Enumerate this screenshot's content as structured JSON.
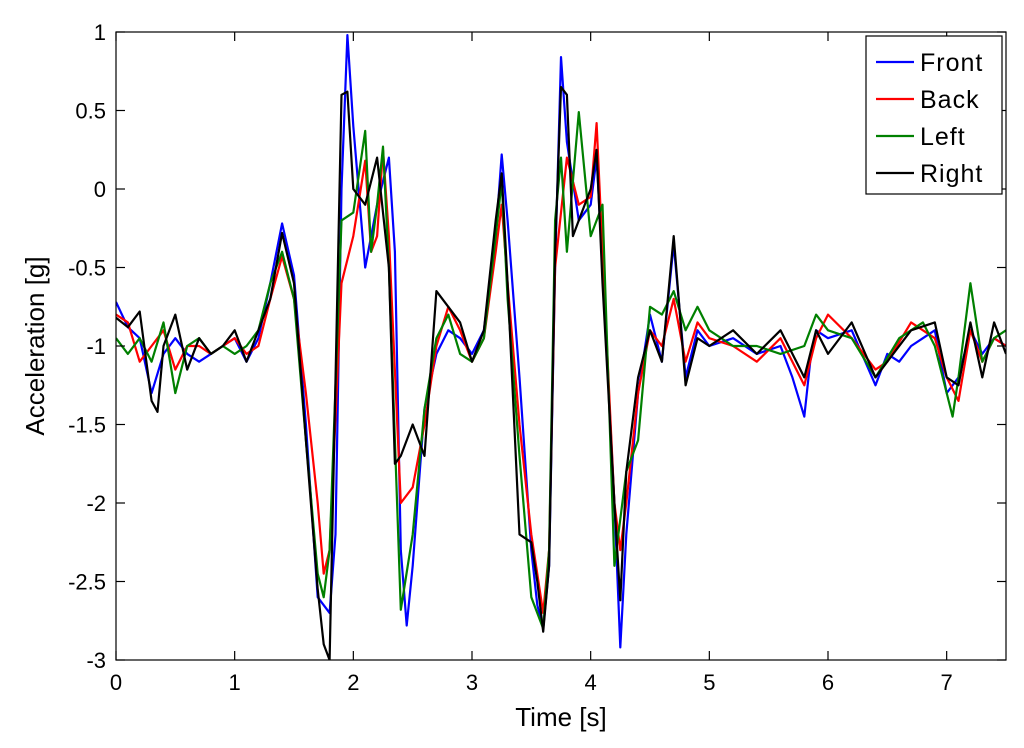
{
  "chart_data": {
    "type": "line",
    "title": "",
    "xlabel": "Time [s]",
    "ylabel": "Acceleration [g]",
    "xlim": [
      0,
      7.5
    ],
    "ylim": [
      -3,
      1
    ],
    "x_ticks": [
      0,
      1,
      2,
      3,
      4,
      5,
      6,
      7
    ],
    "y_ticks": [
      1,
      0.5,
      0,
      -0.5,
      -1,
      -1.5,
      -2,
      -2.5,
      -3
    ],
    "grid": false,
    "legend": "top-right",
    "series": [
      {
        "name": "Front",
        "color": "#0000ff",
        "points": [
          [
            0,
            -0.72
          ],
          [
            0.1,
            -0.88
          ],
          [
            0.2,
            -0.95
          ],
          [
            0.3,
            -1.3
          ],
          [
            0.4,
            -1.05
          ],
          [
            0.5,
            -0.95
          ],
          [
            0.6,
            -1.05
          ],
          [
            0.7,
            -1.1
          ],
          [
            0.8,
            -1.05
          ],
          [
            0.9,
            -1.0
          ],
          [
            1.0,
            -0.95
          ],
          [
            1.1,
            -1.1
          ],
          [
            1.2,
            -0.95
          ],
          [
            1.3,
            -0.6
          ],
          [
            1.4,
            -0.22
          ],
          [
            1.5,
            -0.55
          ],
          [
            1.6,
            -1.5
          ],
          [
            1.7,
            -2.6
          ],
          [
            1.8,
            -2.7
          ],
          [
            1.85,
            -2.2
          ],
          [
            1.9,
            0.0
          ],
          [
            1.95,
            0.98
          ],
          [
            2.0,
            0.4
          ],
          [
            2.1,
            -0.5
          ],
          [
            2.2,
            -0.1
          ],
          [
            2.3,
            0.2
          ],
          [
            2.35,
            -0.4
          ],
          [
            2.4,
            -2.3
          ],
          [
            2.45,
            -2.78
          ],
          [
            2.5,
            -2.4
          ],
          [
            2.6,
            -1.4
          ],
          [
            2.7,
            -1.05
          ],
          [
            2.8,
            -0.9
          ],
          [
            2.9,
            -0.95
          ],
          [
            3.0,
            -1.05
          ],
          [
            3.1,
            -0.9
          ],
          [
            3.2,
            -0.3
          ],
          [
            3.25,
            0.22
          ],
          [
            3.3,
            -0.2
          ],
          [
            3.4,
            -1.2
          ],
          [
            3.5,
            -2.3
          ],
          [
            3.55,
            -2.65
          ],
          [
            3.6,
            -2.8
          ],
          [
            3.65,
            -2.4
          ],
          [
            3.7,
            -0.5
          ],
          [
            3.75,
            0.84
          ],
          [
            3.8,
            0.3
          ],
          [
            3.9,
            -0.2
          ],
          [
            4.0,
            -0.1
          ],
          [
            4.05,
            0.2
          ],
          [
            4.1,
            -0.5
          ],
          [
            4.2,
            -2.0
          ],
          [
            4.25,
            -2.92
          ],
          [
            4.3,
            -2.2
          ],
          [
            4.4,
            -1.3
          ],
          [
            4.5,
            -0.8
          ],
          [
            4.6,
            -1.1
          ],
          [
            4.7,
            -0.35
          ],
          [
            4.8,
            -1.2
          ],
          [
            4.9,
            -0.9
          ],
          [
            5.0,
            -1.0
          ],
          [
            5.2,
            -0.95
          ],
          [
            5.4,
            -1.05
          ],
          [
            5.6,
            -1.0
          ],
          [
            5.7,
            -1.2
          ],
          [
            5.8,
            -1.45
          ],
          [
            5.85,
            -1.1
          ],
          [
            5.9,
            -0.9
          ],
          [
            6.0,
            -0.95
          ],
          [
            6.2,
            -0.9
          ],
          [
            6.4,
            -1.25
          ],
          [
            6.5,
            -1.05
          ],
          [
            6.6,
            -1.1
          ],
          [
            6.7,
            -1.0
          ],
          [
            6.8,
            -0.95
          ],
          [
            6.9,
            -0.9
          ],
          [
            7.0,
            -1.3
          ],
          [
            7.1,
            -1.2
          ],
          [
            7.2,
            -0.9
          ],
          [
            7.3,
            -1.05
          ],
          [
            7.4,
            -0.95
          ],
          [
            7.5,
            -1.0
          ]
        ]
      },
      {
        "name": "Back",
        "color": "#ff0000",
        "points": [
          [
            0,
            -0.8
          ],
          [
            0.1,
            -0.85
          ],
          [
            0.2,
            -1.1
          ],
          [
            0.3,
            -1.0
          ],
          [
            0.4,
            -0.9
          ],
          [
            0.5,
            -1.15
          ],
          [
            0.6,
            -1.0
          ],
          [
            0.7,
            -1.0
          ],
          [
            0.8,
            -1.05
          ],
          [
            0.9,
            -1.0
          ],
          [
            1.0,
            -0.95
          ],
          [
            1.1,
            -1.05
          ],
          [
            1.2,
            -1.0
          ],
          [
            1.3,
            -0.7
          ],
          [
            1.4,
            -0.43
          ],
          [
            1.5,
            -0.7
          ],
          [
            1.6,
            -1.3
          ],
          [
            1.7,
            -2.0
          ],
          [
            1.75,
            -2.45
          ],
          [
            1.8,
            -2.3
          ],
          [
            1.9,
            -0.6
          ],
          [
            2.0,
            -0.3
          ],
          [
            2.1,
            0.18
          ],
          [
            2.15,
            -0.4
          ],
          [
            2.2,
            -0.3
          ],
          [
            2.25,
            0.25
          ],
          [
            2.3,
            -0.3
          ],
          [
            2.4,
            -2.0
          ],
          [
            2.5,
            -1.9
          ],
          [
            2.6,
            -1.5
          ],
          [
            2.7,
            -1.0
          ],
          [
            2.8,
            -0.75
          ],
          [
            2.9,
            -0.9
          ],
          [
            3.0,
            -1.1
          ],
          [
            3.1,
            -0.95
          ],
          [
            3.2,
            -0.4
          ],
          [
            3.25,
            -0.1
          ],
          [
            3.3,
            -0.6
          ],
          [
            3.4,
            -1.5
          ],
          [
            3.5,
            -2.2
          ],
          [
            3.6,
            -2.7
          ],
          [
            3.65,
            -2.3
          ],
          [
            3.7,
            -0.5
          ],
          [
            3.8,
            0.2
          ],
          [
            3.9,
            -0.1
          ],
          [
            4.0,
            -0.05
          ],
          [
            4.05,
            0.42
          ],
          [
            4.1,
            -0.4
          ],
          [
            4.2,
            -2.0
          ],
          [
            4.25,
            -2.3
          ],
          [
            4.3,
            -2.0
          ],
          [
            4.4,
            -1.3
          ],
          [
            4.5,
            -0.9
          ],
          [
            4.6,
            -1.0
          ],
          [
            4.7,
            -0.7
          ],
          [
            4.8,
            -1.1
          ],
          [
            4.9,
            -0.85
          ],
          [
            5.0,
            -0.95
          ],
          [
            5.2,
            -1.0
          ],
          [
            5.4,
            -1.1
          ],
          [
            5.6,
            -0.95
          ],
          [
            5.8,
            -1.25
          ],
          [
            5.9,
            -0.95
          ],
          [
            6.0,
            -0.8
          ],
          [
            6.2,
            -0.95
          ],
          [
            6.4,
            -1.15
          ],
          [
            6.5,
            -1.1
          ],
          [
            6.7,
            -0.85
          ],
          [
            6.9,
            -0.95
          ],
          [
            7.0,
            -1.2
          ],
          [
            7.1,
            -1.35
          ],
          [
            7.2,
            -0.9
          ],
          [
            7.3,
            -1.1
          ],
          [
            7.4,
            -0.95
          ],
          [
            7.5,
            -1.0
          ]
        ]
      },
      {
        "name": "Left",
        "color": "#008000",
        "points": [
          [
            0,
            -0.95
          ],
          [
            0.1,
            -1.05
          ],
          [
            0.2,
            -0.95
          ],
          [
            0.3,
            -1.1
          ],
          [
            0.4,
            -0.85
          ],
          [
            0.5,
            -1.3
          ],
          [
            0.6,
            -1.0
          ],
          [
            0.7,
            -0.95
          ],
          [
            0.8,
            -1.05
          ],
          [
            0.9,
            -1.0
          ],
          [
            1.0,
            -1.05
          ],
          [
            1.1,
            -1.0
          ],
          [
            1.2,
            -0.9
          ],
          [
            1.3,
            -0.6
          ],
          [
            1.4,
            -0.4
          ],
          [
            1.5,
            -0.7
          ],
          [
            1.6,
            -1.6
          ],
          [
            1.7,
            -2.45
          ],
          [
            1.75,
            -2.6
          ],
          [
            1.8,
            -2.3
          ],
          [
            1.9,
            -0.2
          ],
          [
            2.0,
            -0.15
          ],
          [
            2.1,
            0.37
          ],
          [
            2.15,
            -0.4
          ],
          [
            2.2,
            -0.1
          ],
          [
            2.25,
            0.27
          ],
          [
            2.3,
            -0.5
          ],
          [
            2.4,
            -2.68
          ],
          [
            2.5,
            -2.2
          ],
          [
            2.6,
            -1.4
          ],
          [
            2.7,
            -0.95
          ],
          [
            2.8,
            -0.8
          ],
          [
            2.9,
            -1.05
          ],
          [
            3.0,
            -1.1
          ],
          [
            3.1,
            -0.95
          ],
          [
            3.2,
            -0.3
          ],
          [
            3.25,
            0.05
          ],
          [
            3.3,
            -0.7
          ],
          [
            3.4,
            -1.7
          ],
          [
            3.5,
            -2.6
          ],
          [
            3.6,
            -2.8
          ],
          [
            3.65,
            -2.3
          ],
          [
            3.7,
            -0.2
          ],
          [
            3.75,
            0.2
          ],
          [
            3.8,
            -0.4
          ],
          [
            3.9,
            0.49
          ],
          [
            4.0,
            -0.3
          ],
          [
            4.1,
            -0.1
          ],
          [
            4.2,
            -2.4
          ],
          [
            4.3,
            -1.8
          ],
          [
            4.4,
            -1.6
          ],
          [
            4.5,
            -0.75
          ],
          [
            4.6,
            -0.8
          ],
          [
            4.7,
            -0.65
          ],
          [
            4.8,
            -0.9
          ],
          [
            4.9,
            -0.75
          ],
          [
            5.0,
            -0.9
          ],
          [
            5.2,
            -1.0
          ],
          [
            5.4,
            -1.0
          ],
          [
            5.6,
            -1.05
          ],
          [
            5.8,
            -1.0
          ],
          [
            5.9,
            -0.8
          ],
          [
            6.0,
            -0.9
          ],
          [
            6.2,
            -0.95
          ],
          [
            6.4,
            -1.2
          ],
          [
            6.6,
            -0.95
          ],
          [
            6.8,
            -0.85
          ],
          [
            6.9,
            -1.0
          ],
          [
            7.0,
            -1.3
          ],
          [
            7.05,
            -1.45
          ],
          [
            7.1,
            -1.2
          ],
          [
            7.2,
            -0.6
          ],
          [
            7.3,
            -1.1
          ],
          [
            7.4,
            -0.95
          ],
          [
            7.5,
            -0.9
          ]
        ]
      },
      {
        "name": "Right",
        "color": "#000000",
        "points": [
          [
            0,
            -0.82
          ],
          [
            0.1,
            -0.88
          ],
          [
            0.2,
            -0.78
          ],
          [
            0.3,
            -1.35
          ],
          [
            0.35,
            -1.42
          ],
          [
            0.4,
            -1.0
          ],
          [
            0.5,
            -0.8
          ],
          [
            0.6,
            -1.15
          ],
          [
            0.7,
            -0.95
          ],
          [
            0.8,
            -1.05
          ],
          [
            0.9,
            -1.0
          ],
          [
            1.0,
            -0.9
          ],
          [
            1.1,
            -1.1
          ],
          [
            1.2,
            -0.9
          ],
          [
            1.3,
            -0.7
          ],
          [
            1.4,
            -0.28
          ],
          [
            1.5,
            -0.6
          ],
          [
            1.6,
            -1.6
          ],
          [
            1.7,
            -2.55
          ],
          [
            1.75,
            -2.9
          ],
          [
            1.8,
            -3.0
          ],
          [
            1.9,
            0.6
          ],
          [
            1.95,
            0.62
          ],
          [
            2.0,
            0.0
          ],
          [
            2.1,
            -0.1
          ],
          [
            2.2,
            0.2
          ],
          [
            2.3,
            -0.5
          ],
          [
            2.35,
            -1.75
          ],
          [
            2.4,
            -1.7
          ],
          [
            2.5,
            -1.5
          ],
          [
            2.6,
            -1.7
          ],
          [
            2.7,
            -0.65
          ],
          [
            2.8,
            -0.75
          ],
          [
            2.9,
            -0.85
          ],
          [
            3.0,
            -1.1
          ],
          [
            3.1,
            -0.9
          ],
          [
            3.2,
            -0.2
          ],
          [
            3.25,
            0.1
          ],
          [
            3.3,
            -0.6
          ],
          [
            3.4,
            -2.2
          ],
          [
            3.5,
            -2.25
          ],
          [
            3.55,
            -2.5
          ],
          [
            3.6,
            -2.82
          ],
          [
            3.65,
            -2.4
          ],
          [
            3.7,
            -0.4
          ],
          [
            3.75,
            0.65
          ],
          [
            3.8,
            0.6
          ],
          [
            3.85,
            -0.3
          ],
          [
            3.9,
            -0.2
          ],
          [
            4.0,
            0.0
          ],
          [
            4.05,
            0.25
          ],
          [
            4.1,
            -0.6
          ],
          [
            4.2,
            -2.0
          ],
          [
            4.25,
            -2.62
          ],
          [
            4.3,
            -1.8
          ],
          [
            4.4,
            -1.2
          ],
          [
            4.5,
            -0.9
          ],
          [
            4.6,
            -1.1
          ],
          [
            4.7,
            -0.3
          ],
          [
            4.8,
            -1.25
          ],
          [
            4.9,
            -0.95
          ],
          [
            5.0,
            -1.0
          ],
          [
            5.2,
            -0.9
          ],
          [
            5.4,
            -1.05
          ],
          [
            5.6,
            -0.9
          ],
          [
            5.8,
            -1.2
          ],
          [
            5.9,
            -0.9
          ],
          [
            6.0,
            -1.05
          ],
          [
            6.2,
            -0.85
          ],
          [
            6.4,
            -1.2
          ],
          [
            6.5,
            -1.1
          ],
          [
            6.7,
            -0.9
          ],
          [
            6.9,
            -0.85
          ],
          [
            7.0,
            -1.2
          ],
          [
            7.1,
            -1.25
          ],
          [
            7.2,
            -0.85
          ],
          [
            7.3,
            -1.2
          ],
          [
            7.4,
            -0.85
          ],
          [
            7.5,
            -1.05
          ]
        ]
      }
    ]
  }
}
